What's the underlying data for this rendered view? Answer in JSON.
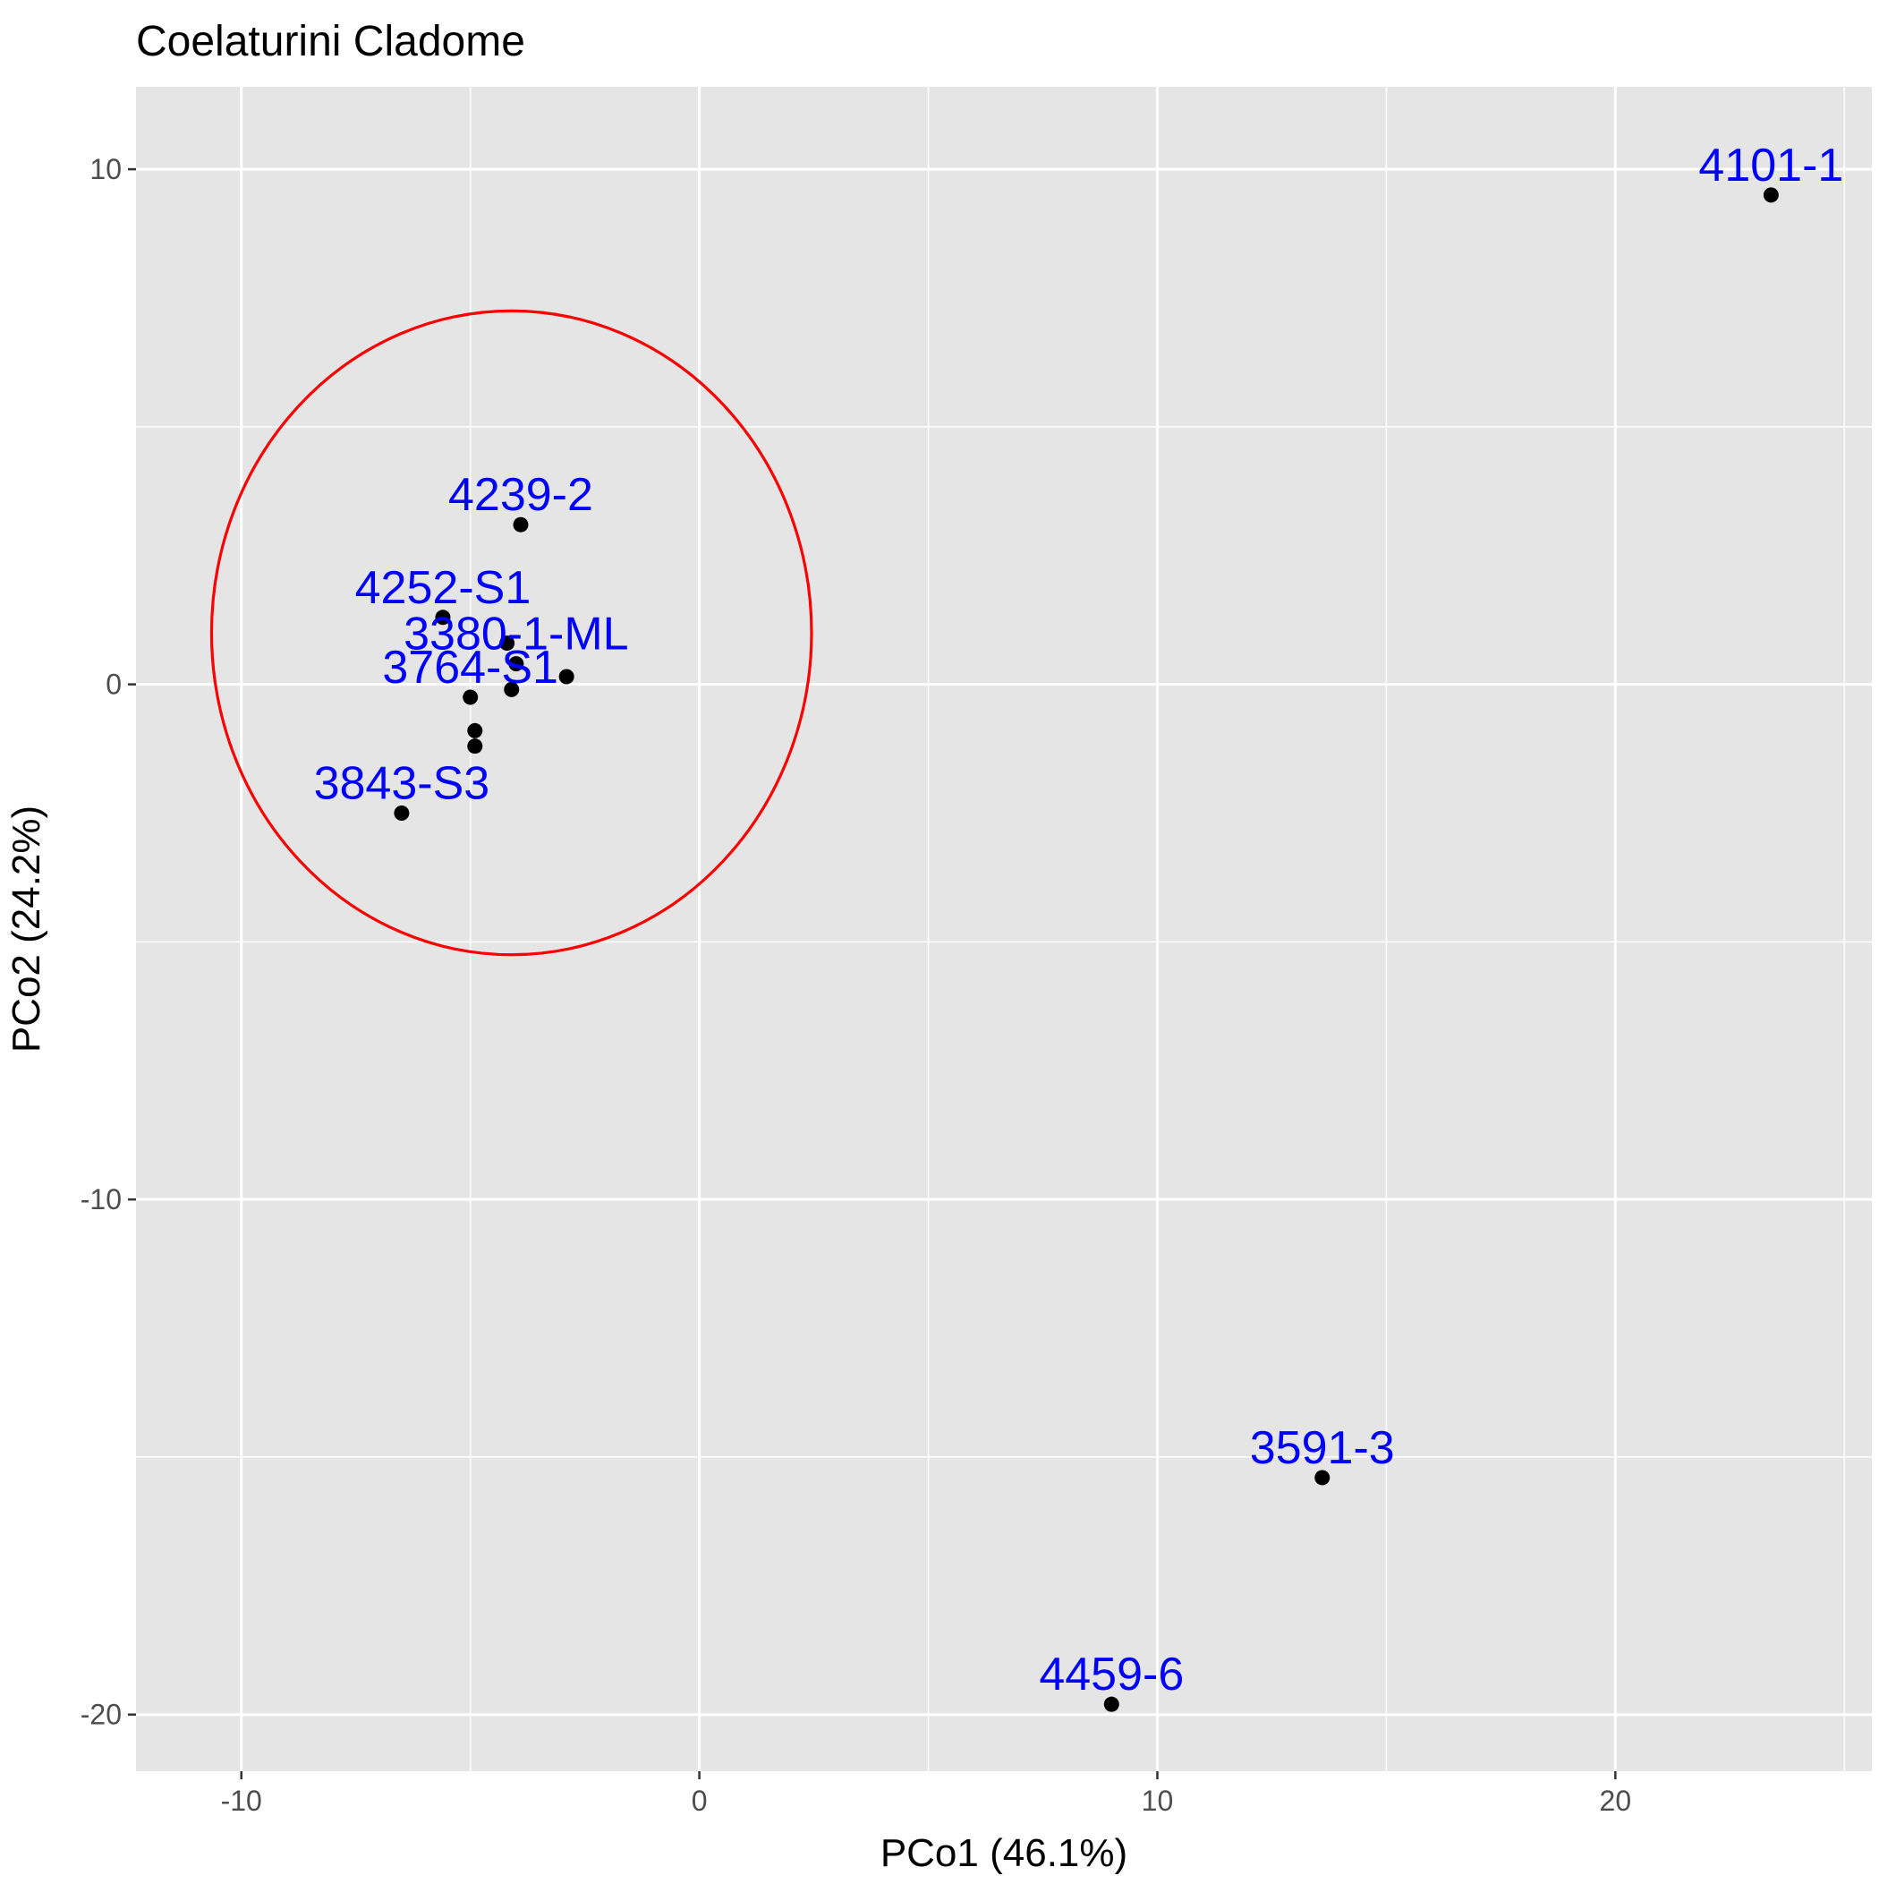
{
  "chart_data": {
    "type": "scatter",
    "title": "Coelaturini Cladome",
    "xlabel": "PCo1 (46.1%)",
    "ylabel": "PCo2 (24.2%)",
    "xlim": [
      -12.3,
      25.6
    ],
    "ylim": [
      -21.1,
      11.6
    ],
    "x_ticks": [
      -10,
      0,
      10,
      20
    ],
    "y_ticks": [
      -20,
      -10,
      0,
      10
    ],
    "grid": true,
    "background": "#e5e5e5",
    "points": [
      {
        "x": 23.4,
        "y": 9.5,
        "label": "4101-1"
      },
      {
        "x": -3.9,
        "y": 3.1,
        "label": "4239-2"
      },
      {
        "x": -5.6,
        "y": 1.3,
        "label": "4252-S1"
      },
      {
        "x": -4.2,
        "y": 0.8,
        "label": ""
      },
      {
        "x": -4.0,
        "y": 0.4,
        "label": "3380-1-ML"
      },
      {
        "x": -2.9,
        "y": 0.15,
        "label": ""
      },
      {
        "x": -4.1,
        "y": -0.1,
        "label": ""
      },
      {
        "x": -5.0,
        "y": -0.25,
        "label": "3764-S1"
      },
      {
        "x": -4.9,
        "y": -0.9,
        "label": ""
      },
      {
        "x": -4.9,
        "y": -1.2,
        "label": ""
      },
      {
        "x": -6.5,
        "y": -2.5,
        "label": "3843-S3"
      },
      {
        "x": 13.6,
        "y": -15.4,
        "label": "3591-3"
      },
      {
        "x": 9.0,
        "y": -19.8,
        "label": "4459-6"
      }
    ],
    "ellipse": {
      "center": [
        -4.1,
        1.0
      ],
      "rx": 6.55,
      "ry": 6.25,
      "color": "#ff0000"
    },
    "point_color": "#000000",
    "label_color": "#0000ff"
  }
}
